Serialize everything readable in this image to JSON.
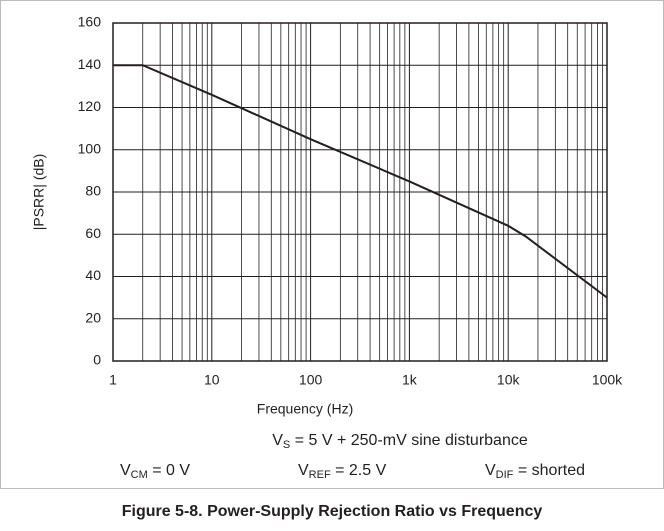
{
  "chart_data": {
    "type": "line",
    "title": "Figure 5-8. Power-Supply Rejection Ratio vs Frequency",
    "x_label": "Frequency (Hz)",
    "y_label": "|PSRR| (dB)",
    "annotations": [
      {
        "main": "V",
        "sub": "S",
        "rest": " = 5 V + 250-mV sine disturbance"
      },
      {
        "main": "V",
        "sub": "CM",
        "rest": " = 0 V"
      },
      {
        "main": "V",
        "sub": "REF",
        "rest": " = 2.5 V"
      },
      {
        "main": "V",
        "sub": "DIF",
        "rest": " = shorted"
      }
    ],
    "x": [
      1,
      2,
      10,
      100,
      1000,
      10000,
      15000,
      100000
    ],
    "series": [
      {
        "name": "PSRR",
        "color": "#231f20",
        "values": [
          140,
          140,
          126,
          105,
          85,
          64,
          59,
          30
        ]
      }
    ],
    "x_log": true,
    "xlim": [
      1,
      100000
    ],
    "xticks": [
      1,
      10,
      100,
      {
        "value": 1000,
        "label": "1k"
      },
      {
        "value": 10000,
        "label": "10k"
      },
      {
        "value": 100000,
        "label": "100k"
      }
    ],
    "xminorticks": [
      2,
      3,
      4,
      5,
      6,
      7,
      8,
      9,
      20,
      30,
      40,
      50,
      60,
      70,
      80,
      90,
      200,
      300,
      400,
      500,
      600,
      700,
      800,
      900,
      2000,
      3000,
      4000,
      5000,
      6000,
      7000,
      8000,
      9000,
      20000,
      30000,
      40000,
      50000,
      60000,
      70000,
      80000,
      90000
    ],
    "ylim": [
      0,
      160
    ],
    "yticks": [
      0,
      20,
      40,
      60,
      80,
      100,
      120,
      140,
      160
    ],
    "grid": true
  }
}
